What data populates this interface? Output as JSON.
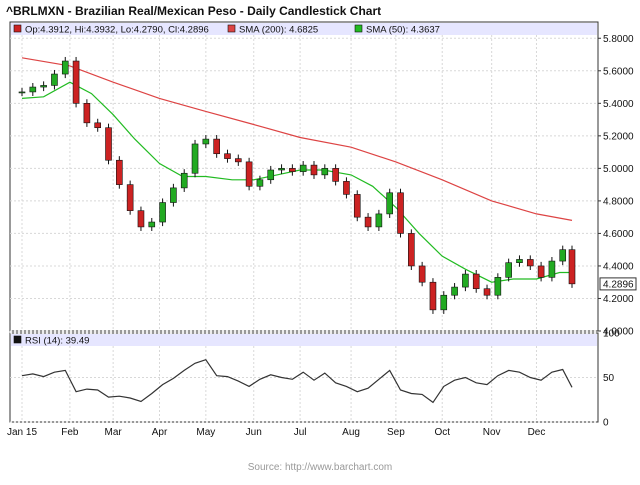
{
  "chart_data": [
    {
      "type": "candlestick",
      "title": "^BRLMXN - Brazilian Real/Mexican Peso - Daily Candlestick Chart",
      "legend": {
        "ohlc": {
          "label": "Op:4.3912, Hi:4.3932, Lo:4.2790, Cl:4.2896",
          "color": "#cc2222"
        },
        "sma200": {
          "label": "SMA (200): 4.6825",
          "color": "#dd4444"
        },
        "sma50": {
          "label": "SMA (50): 4.3637",
          "color": "#22bb22"
        }
      },
      "last_price_label": "4.2896",
      "last_price": 4.2896,
      "ylim": [
        4.0,
        5.9
      ],
      "yticks": [
        "4.0000",
        "4.2000",
        "4.4000",
        "4.6000",
        "4.8000",
        "5.0000",
        "5.2000",
        "5.4000",
        "5.6000",
        "5.8000"
      ],
      "x_tick_labels": [
        "Jan 15",
        "Feb",
        "Mar",
        "Apr",
        "May",
        "Jun",
        "Jul",
        "Aug",
        "Sep",
        "Oct",
        "Nov",
        "Dec"
      ],
      "close_series": [
        [
          "2015-01-02",
          5.47
        ],
        [
          "2015-01-09",
          5.5
        ],
        [
          "2015-01-16",
          5.51
        ],
        [
          "2015-01-23",
          5.58
        ],
        [
          "2015-01-30",
          5.66
        ],
        [
          "2015-02-06",
          5.4
        ],
        [
          "2015-02-13",
          5.28
        ],
        [
          "2015-02-20",
          5.25
        ],
        [
          "2015-02-27",
          5.05
        ],
        [
          "2015-03-06",
          4.9
        ],
        [
          "2015-03-13",
          4.74
        ],
        [
          "2015-03-20",
          4.64
        ],
        [
          "2015-03-27",
          4.67
        ],
        [
          "2015-04-03",
          4.79
        ],
        [
          "2015-04-10",
          4.88
        ],
        [
          "2015-04-17",
          4.97
        ],
        [
          "2015-04-24",
          5.15
        ],
        [
          "2015-05-01",
          5.18
        ],
        [
          "2015-05-08",
          5.09
        ],
        [
          "2015-05-15",
          5.06
        ],
        [
          "2015-05-22",
          5.04
        ],
        [
          "2015-05-29",
          4.89
        ],
        [
          "2015-06-05",
          4.93
        ],
        [
          "2015-06-12",
          4.99
        ],
        [
          "2015-06-19",
          5.0
        ],
        [
          "2015-06-26",
          4.98
        ],
        [
          "2015-07-03",
          5.02
        ],
        [
          "2015-07-10",
          4.96
        ],
        [
          "2015-07-17",
          5.0
        ],
        [
          "2015-07-24",
          4.92
        ],
        [
          "2015-07-31",
          4.84
        ],
        [
          "2015-08-07",
          4.7
        ],
        [
          "2015-08-14",
          4.64
        ],
        [
          "2015-08-21",
          4.72
        ],
        [
          "2015-08-28",
          4.85
        ],
        [
          "2015-09-04",
          4.6
        ],
        [
          "2015-09-11",
          4.4
        ],
        [
          "2015-09-18",
          4.3
        ],
        [
          "2015-09-25",
          4.13
        ],
        [
          "2015-10-02",
          4.22
        ],
        [
          "2015-10-09",
          4.27
        ],
        [
          "2015-10-16",
          4.35
        ],
        [
          "2015-10-23",
          4.26
        ],
        [
          "2015-10-30",
          4.22
        ],
        [
          "2015-11-06",
          4.33
        ],
        [
          "2015-11-13",
          4.42
        ],
        [
          "2015-11-20",
          4.44
        ],
        [
          "2015-11-27",
          4.4
        ],
        [
          "2015-12-04",
          4.33
        ],
        [
          "2015-12-11",
          4.43
        ],
        [
          "2015-12-18",
          4.5
        ],
        [
          "2015-12-24",
          4.29
        ]
      ],
      "sma200_series": [
        [
          "2015-01-02",
          5.68
        ],
        [
          "2015-02-02",
          5.63
        ],
        [
          "2015-03-02",
          5.53
        ],
        [
          "2015-04-01",
          5.43
        ],
        [
          "2015-05-01",
          5.35
        ],
        [
          "2015-06-01",
          5.27
        ],
        [
          "2015-07-01",
          5.19
        ],
        [
          "2015-08-03",
          5.13
        ],
        [
          "2015-09-01",
          5.04
        ],
        [
          "2015-10-01",
          4.93
        ],
        [
          "2015-11-02",
          4.8
        ],
        [
          "2015-12-01",
          4.72
        ],
        [
          "2015-12-24",
          4.68
        ]
      ],
      "sma50_series": [
        [
          "2015-01-02",
          5.43
        ],
        [
          "2015-01-16",
          5.44
        ],
        [
          "2015-02-02",
          5.53
        ],
        [
          "2015-02-16",
          5.46
        ],
        [
          "2015-03-02",
          5.33
        ],
        [
          "2015-03-16",
          5.18
        ],
        [
          "2015-04-01",
          5.03
        ],
        [
          "2015-04-16",
          4.95
        ],
        [
          "2015-05-01",
          4.95
        ],
        [
          "2015-05-18",
          4.93
        ],
        [
          "2015-06-01",
          4.93
        ],
        [
          "2015-06-16",
          4.96
        ],
        [
          "2015-07-01",
          4.99
        ],
        [
          "2015-07-16",
          4.99
        ],
        [
          "2015-08-03",
          4.96
        ],
        [
          "2015-08-17",
          4.89
        ],
        [
          "2015-09-01",
          4.76
        ],
        [
          "2015-09-16",
          4.6
        ],
        [
          "2015-10-01",
          4.46
        ],
        [
          "2015-10-16",
          4.38
        ],
        [
          "2015-11-02",
          4.3
        ],
        [
          "2015-11-16",
          4.32
        ],
        [
          "2015-12-01",
          4.32
        ],
        [
          "2015-12-16",
          4.36
        ],
        [
          "2015-12-24",
          4.36
        ]
      ]
    },
    {
      "type": "line",
      "legend": {
        "label": "RSI (14): 39.49"
      },
      "ylim": [
        0,
        100
      ],
      "yticks": [
        "0",
        "50",
        "100"
      ],
      "series": [
        [
          "2015-01-02",
          52
        ],
        [
          "2015-01-09",
          54
        ],
        [
          "2015-01-16",
          51
        ],
        [
          "2015-01-23",
          56
        ],
        [
          "2015-01-30",
          58
        ],
        [
          "2015-02-06",
          34
        ],
        [
          "2015-02-13",
          37
        ],
        [
          "2015-02-20",
          36
        ],
        [
          "2015-02-27",
          28
        ],
        [
          "2015-03-06",
          29
        ],
        [
          "2015-03-13",
          27
        ],
        [
          "2015-03-20",
          23
        ],
        [
          "2015-03-27",
          32
        ],
        [
          "2015-04-03",
          42
        ],
        [
          "2015-04-10",
          49
        ],
        [
          "2015-04-17",
          58
        ],
        [
          "2015-04-24",
          66
        ],
        [
          "2015-05-01",
          70
        ],
        [
          "2015-05-08",
          52
        ],
        [
          "2015-05-15",
          51
        ],
        [
          "2015-05-22",
          46
        ],
        [
          "2015-05-29",
          40
        ],
        [
          "2015-06-05",
          48
        ],
        [
          "2015-06-12",
          53
        ],
        [
          "2015-06-19",
          50
        ],
        [
          "2015-06-26",
          48
        ],
        [
          "2015-07-03",
          56
        ],
        [
          "2015-07-10",
          47
        ],
        [
          "2015-07-17",
          55
        ],
        [
          "2015-07-24",
          44
        ],
        [
          "2015-07-31",
          40
        ],
        [
          "2015-08-07",
          34
        ],
        [
          "2015-08-14",
          38
        ],
        [
          "2015-08-21",
          48
        ],
        [
          "2015-08-28",
          58
        ],
        [
          "2015-09-04",
          36
        ],
        [
          "2015-09-11",
          32
        ],
        [
          "2015-09-18",
          31
        ],
        [
          "2015-09-25",
          22
        ],
        [
          "2015-10-02",
          40
        ],
        [
          "2015-10-09",
          47
        ],
        [
          "2015-10-16",
          50
        ],
        [
          "2015-10-23",
          44
        ],
        [
          "2015-10-30",
          42
        ],
        [
          "2015-11-06",
          52
        ],
        [
          "2015-11-13",
          58
        ],
        [
          "2015-11-20",
          56
        ],
        [
          "2015-11-27",
          50
        ],
        [
          "2015-12-04",
          47
        ],
        [
          "2015-12-11",
          56
        ],
        [
          "2015-12-18",
          59
        ],
        [
          "2015-12-24",
          39
        ]
      ]
    }
  ],
  "source": "Source: http://www.barchart.com"
}
